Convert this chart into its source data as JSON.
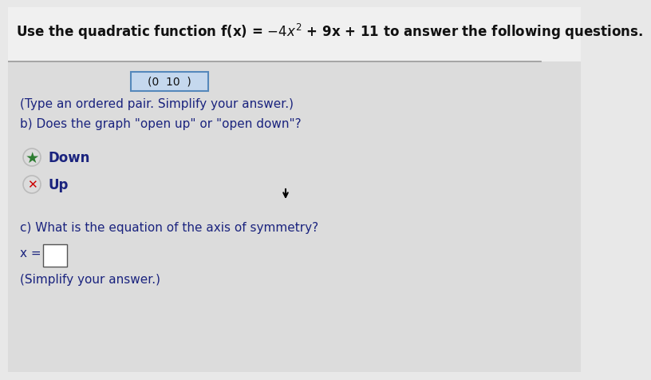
{
  "title": "Use the quadratic function f(x) = −4x² + 9x + 11 to answer the following questions.",
  "ordered_pair_label": "(0  10  )",
  "type_ordered_pair": "(Type an ordered pair. Simplify your answer.)",
  "question_b": "b) Does the graph \"open up\" or \"open down\"?",
  "option_down": "Down",
  "option_up": "Up",
  "question_c": "c) What is the equation of the axis of symmetry?",
  "x_eq": "x =",
  "simplify": "(Simplify your answer.)",
  "title_bg": "#f5f5f5",
  "content_bg": "#e8e8e8",
  "text_color": "#1a237e",
  "star_color": "#2e7d32",
  "x_color": "#cc0000",
  "box_highlight": "#b8d0e8",
  "box_border": "#6699cc",
  "font_size_title": 12,
  "font_size_body": 11
}
